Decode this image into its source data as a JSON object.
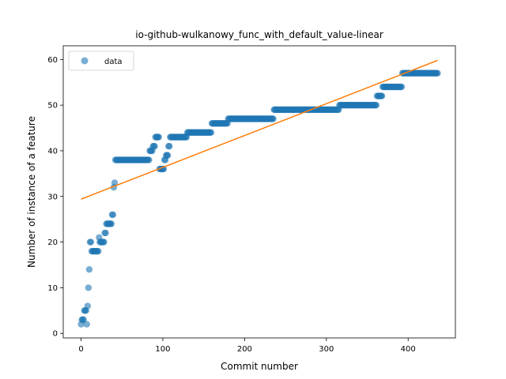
{
  "chart_data": {
    "type": "scatter",
    "title": "io-github-wulkanowy_func_with_default_value-linear",
    "xlabel": "Commit number",
    "ylabel": "Number of instance of a feature",
    "xlim": [
      -21.8,
      457.8
    ],
    "ylim": [
      -1.0,
      63.0
    ],
    "xticks": [
      0,
      100,
      200,
      300,
      400
    ],
    "yticks": [
      0,
      10,
      20,
      30,
      40,
      50,
      60
    ],
    "legend": {
      "placement": "top-left",
      "entries": [
        "data"
      ]
    },
    "grid": false,
    "colors": {
      "data": "#1f77b4",
      "fit": "#ff7f0e"
    },
    "series": [
      {
        "name": "data",
        "kind": "scatter",
        "segments": [
          [
            0,
            2
          ],
          [
            1,
            3
          ],
          [
            2,
            3
          ],
          [
            4,
            5
          ],
          [
            5,
            5
          ],
          [
            7,
            2
          ],
          [
            8,
            6
          ],
          [
            9,
            10
          ],
          [
            10,
            14
          ],
          [
            11,
            20
          ],
          [
            12,
            20
          ],
          [
            13,
            18
          ],
          [
            15,
            18
          ],
          [
            17,
            18
          ],
          [
            19,
            18
          ],
          [
            20,
            18
          ],
          [
            22,
            21
          ],
          [
            23,
            20
          ],
          [
            25,
            20
          ],
          [
            27,
            20
          ],
          [
            29,
            22
          ],
          [
            30,
            22
          ],
          [
            31,
            24
          ],
          [
            33,
            24
          ],
          [
            35,
            24
          ],
          [
            37,
            24
          ],
          [
            38,
            26
          ],
          [
            39,
            26
          ],
          [
            40,
            32
          ],
          [
            41,
            33
          ],
          [
            42,
            38
          ],
          [
            44,
            38
          ],
          [
            46,
            38
          ],
          [
            48,
            38
          ],
          [
            50,
            38
          ],
          [
            52,
            38
          ],
          [
            54,
            38
          ],
          [
            56,
            38
          ],
          [
            58,
            38
          ],
          [
            60,
            38
          ],
          [
            62,
            38
          ],
          [
            64,
            38
          ],
          [
            66,
            38
          ],
          [
            68,
            38
          ],
          [
            70,
            38
          ],
          [
            72,
            38
          ],
          [
            74,
            38
          ],
          [
            76,
            38
          ],
          [
            78,
            38
          ],
          [
            80,
            38
          ],
          [
            82,
            38
          ],
          [
            84,
            40
          ],
          [
            86,
            40
          ],
          [
            88,
            41
          ],
          [
            90,
            41
          ],
          [
            91,
            43
          ],
          [
            93,
            43
          ],
          [
            95,
            43
          ],
          [
            96,
            36
          ],
          [
            98,
            36
          ],
          [
            100,
            36
          ],
          [
            101,
            36
          ],
          [
            102,
            38
          ],
          [
            104,
            39
          ],
          [
            106,
            39
          ],
          [
            107,
            41
          ],
          [
            109,
            43
          ],
          [
            111,
            43
          ],
          [
            113,
            43
          ],
          [
            115,
            43
          ],
          [
            117,
            43
          ],
          [
            119,
            43
          ],
          [
            121,
            43
          ],
          [
            123,
            43
          ],
          [
            125,
            43
          ],
          [
            127,
            43
          ],
          [
            129,
            43
          ],
          [
            130,
            44
          ],
          [
            132,
            44
          ],
          [
            134,
            44
          ],
          [
            136,
            44
          ],
          [
            138,
            44
          ],
          [
            140,
            44
          ],
          [
            142,
            44
          ],
          [
            144,
            44
          ],
          [
            146,
            44
          ],
          [
            148,
            44
          ],
          [
            150,
            44
          ],
          [
            152,
            44
          ],
          [
            154,
            44
          ],
          [
            156,
            44
          ],
          [
            158,
            44
          ],
          [
            160,
            46
          ],
          [
            162,
            46
          ],
          [
            164,
            46
          ],
          [
            166,
            46
          ],
          [
            168,
            46
          ],
          [
            170,
            46
          ],
          [
            172,
            46
          ],
          [
            174,
            46
          ],
          [
            176,
            46
          ],
          [
            178,
            46
          ],
          [
            180,
            47
          ],
          [
            182,
            47
          ],
          [
            184,
            47
          ],
          [
            186,
            47
          ],
          [
            188,
            47
          ],
          [
            190,
            47
          ],
          [
            192,
            47
          ],
          [
            194,
            47
          ],
          [
            196,
            47
          ],
          [
            198,
            47
          ],
          [
            200,
            47
          ],
          [
            202,
            47
          ],
          [
            204,
            47
          ],
          [
            206,
            47
          ],
          [
            208,
            47
          ],
          [
            210,
            47
          ],
          [
            212,
            47
          ],
          [
            214,
            47
          ],
          [
            216,
            47
          ],
          [
            218,
            47
          ],
          [
            220,
            47
          ],
          [
            222,
            47
          ],
          [
            224,
            47
          ],
          [
            226,
            47
          ],
          [
            228,
            47
          ],
          [
            230,
            47
          ],
          [
            232,
            47
          ],
          [
            234,
            47
          ],
          [
            236,
            49
          ],
          [
            238,
            49
          ],
          [
            240,
            49
          ],
          [
            242,
            49
          ],
          [
            244,
            49
          ],
          [
            246,
            49
          ],
          [
            248,
            49
          ],
          [
            250,
            49
          ],
          [
            252,
            49
          ],
          [
            254,
            49
          ],
          [
            256,
            49
          ],
          [
            258,
            49
          ],
          [
            260,
            49
          ],
          [
            262,
            49
          ],
          [
            264,
            49
          ],
          [
            266,
            49
          ],
          [
            268,
            49
          ],
          [
            270,
            49
          ],
          [
            272,
            49
          ],
          [
            274,
            49
          ],
          [
            276,
            49
          ],
          [
            278,
            49
          ],
          [
            280,
            49
          ],
          [
            282,
            49
          ],
          [
            284,
            49
          ],
          [
            286,
            49
          ],
          [
            288,
            49
          ],
          [
            290,
            49
          ],
          [
            292,
            49
          ],
          [
            294,
            49
          ],
          [
            296,
            49
          ],
          [
            298,
            49
          ],
          [
            300,
            49
          ],
          [
            302,
            49
          ],
          [
            304,
            49
          ],
          [
            306,
            49
          ],
          [
            308,
            49
          ],
          [
            310,
            49
          ],
          [
            312,
            49
          ],
          [
            314,
            49
          ],
          [
            316,
            50
          ],
          [
            318,
            50
          ],
          [
            320,
            50
          ],
          [
            322,
            50
          ],
          [
            324,
            50
          ],
          [
            326,
            50
          ],
          [
            328,
            50
          ],
          [
            330,
            50
          ],
          [
            332,
            50
          ],
          [
            334,
            50
          ],
          [
            336,
            50
          ],
          [
            338,
            50
          ],
          [
            340,
            50
          ],
          [
            342,
            50
          ],
          [
            344,
            50
          ],
          [
            346,
            50
          ],
          [
            348,
            50
          ],
          [
            350,
            50
          ],
          [
            352,
            50
          ],
          [
            354,
            50
          ],
          [
            356,
            50
          ],
          [
            358,
            50
          ],
          [
            360,
            50
          ],
          [
            362,
            52
          ],
          [
            364,
            52
          ],
          [
            366,
            52
          ],
          [
            368,
            52
          ],
          [
            369,
            54
          ],
          [
            371,
            54
          ],
          [
            373,
            54
          ],
          [
            375,
            54
          ],
          [
            377,
            54
          ],
          [
            379,
            54
          ],
          [
            381,
            54
          ],
          [
            383,
            54
          ],
          [
            385,
            54
          ],
          [
            387,
            54
          ],
          [
            389,
            54
          ],
          [
            391,
            54
          ],
          [
            393,
            57
          ],
          [
            395,
            57
          ],
          [
            397,
            57
          ],
          [
            399,
            57
          ],
          [
            401,
            57
          ],
          [
            403,
            57
          ],
          [
            405,
            57
          ],
          [
            407,
            57
          ],
          [
            409,
            57
          ],
          [
            411,
            57
          ],
          [
            413,
            57
          ],
          [
            415,
            57
          ],
          [
            417,
            57
          ],
          [
            419,
            57
          ],
          [
            421,
            57
          ],
          [
            423,
            57
          ],
          [
            425,
            57
          ],
          [
            427,
            57
          ],
          [
            429,
            57
          ],
          [
            431,
            57
          ],
          [
            433,
            57
          ],
          [
            435,
            57
          ],
          [
            436,
            57
          ]
        ]
      },
      {
        "name": "",
        "kind": "line",
        "points": [
          [
            0,
            29.4
          ],
          [
            436,
            59.8
          ]
        ]
      }
    ]
  }
}
